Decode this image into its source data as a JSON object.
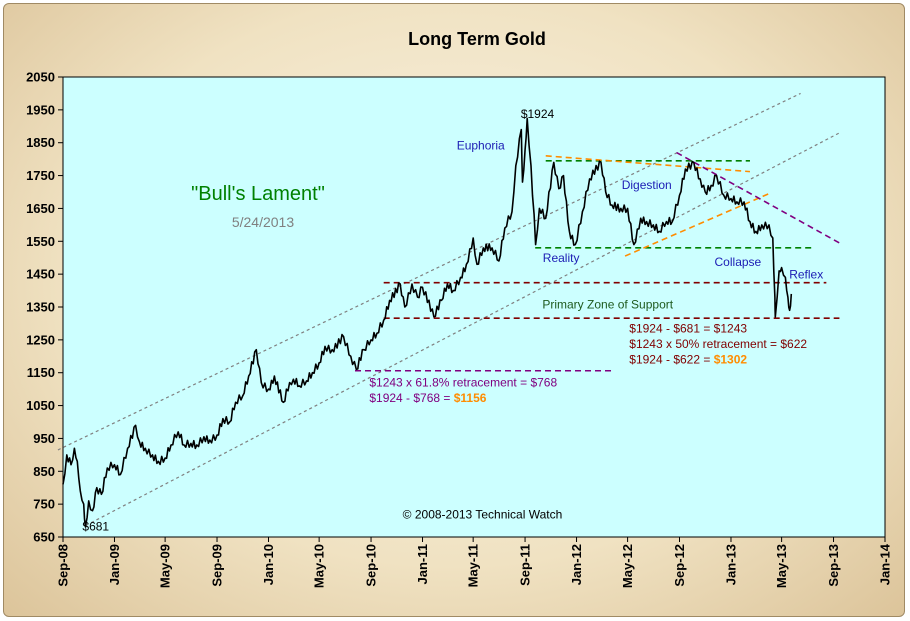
{
  "chart_data": {
    "type": "line",
    "title": "Long Term Gold",
    "xlabel": "",
    "ylabel": "",
    "ylim": [
      650,
      2050
    ],
    "yticks": [
      650,
      750,
      850,
      950,
      1050,
      1150,
      1250,
      1350,
      1450,
      1550,
      1650,
      1750,
      1850,
      1950,
      2050
    ],
    "xlim": [
      "2008-09-01",
      "2014-01-01"
    ],
    "xticks": [
      {
        "date": "2008-09-01",
        "label": "Sep-08"
      },
      {
        "date": "2009-01-01",
        "label": "Jan-09"
      },
      {
        "date": "2009-05-01",
        "label": "May-09"
      },
      {
        "date": "2009-09-01",
        "label": "Sep-09"
      },
      {
        "date": "2010-01-01",
        "label": "Jan-10"
      },
      {
        "date": "2010-05-01",
        "label": "May-10"
      },
      {
        "date": "2010-09-01",
        "label": "Sep-10"
      },
      {
        "date": "2011-01-01",
        "label": "Jan-11"
      },
      {
        "date": "2011-05-01",
        "label": "May-11"
      },
      {
        "date": "2011-09-01",
        "label": "Sep-11"
      },
      {
        "date": "2012-01-01",
        "label": "Jan-12"
      },
      {
        "date": "2012-05-01",
        "label": "May-12"
      },
      {
        "date": "2012-09-01",
        "label": "Sep-12"
      },
      {
        "date": "2013-01-01",
        "label": "Jan-13"
      },
      {
        "date": "2013-05-01",
        "label": "May-13"
      },
      {
        "date": "2013-09-01",
        "label": "Sep-13"
      },
      {
        "date": "2014-01-01",
        "label": "Jan-14"
      }
    ],
    "grid": false,
    "series": [
      {
        "color": "#000000",
        "points": [
          [
            "2008-09-01",
            810
          ],
          [
            "2008-09-10",
            900
          ],
          [
            "2008-09-20",
            870
          ],
          [
            "2008-09-28",
            920
          ],
          [
            "2008-10-05",
            880
          ],
          [
            "2008-10-12",
            790
          ],
          [
            "2008-10-20",
            750
          ],
          [
            "2008-10-24",
            681
          ],
          [
            "2008-11-01",
            760
          ],
          [
            "2008-11-10",
            730
          ],
          [
            "2008-11-20",
            800
          ],
          [
            "2008-12-01",
            780
          ],
          [
            "2008-12-15",
            860
          ],
          [
            "2009-01-01",
            870
          ],
          [
            "2009-01-15",
            840
          ],
          [
            "2009-02-01",
            920
          ],
          [
            "2009-02-20",
            990
          ],
          [
            "2009-03-01",
            940
          ],
          [
            "2009-03-15",
            920
          ],
          [
            "2009-04-01",
            900
          ],
          [
            "2009-04-15",
            880
          ],
          [
            "2009-05-01",
            890
          ],
          [
            "2009-05-15",
            930
          ],
          [
            "2009-06-01",
            970
          ],
          [
            "2009-06-15",
            930
          ],
          [
            "2009-07-01",
            935
          ],
          [
            "2009-07-15",
            930
          ],
          [
            "2009-08-01",
            955
          ],
          [
            "2009-08-15",
            945
          ],
          [
            "2009-09-01",
            960
          ],
          [
            "2009-09-15",
            1010
          ],
          [
            "2009-10-01",
            1000
          ],
          [
            "2009-10-15",
            1060
          ],
          [
            "2009-11-01",
            1080
          ],
          [
            "2009-11-15",
            1140
          ],
          [
            "2009-12-03",
            1220
          ],
          [
            "2009-12-15",
            1120
          ],
          [
            "2010-01-01",
            1100
          ],
          [
            "2010-01-15",
            1140
          ],
          [
            "2010-02-05",
            1060
          ],
          [
            "2010-02-20",
            1120
          ],
          [
            "2010-03-01",
            1130
          ],
          [
            "2010-03-15",
            1110
          ],
          [
            "2010-04-01",
            1125
          ],
          [
            "2010-04-15",
            1150
          ],
          [
            "2010-05-01",
            1180
          ],
          [
            "2010-05-15",
            1230
          ],
          [
            "2010-06-01",
            1220
          ],
          [
            "2010-06-28",
            1260
          ],
          [
            "2010-07-15",
            1200
          ],
          [
            "2010-07-28",
            1160
          ],
          [
            "2010-08-15",
            1220
          ],
          [
            "2010-09-01",
            1250
          ],
          [
            "2010-09-15",
            1270
          ],
          [
            "2010-10-01",
            1310
          ],
          [
            "2010-10-15",
            1370
          ],
          [
            "2010-11-09",
            1420
          ],
          [
            "2010-11-20",
            1350
          ],
          [
            "2010-12-07",
            1420
          ],
          [
            "2010-12-20",
            1380
          ],
          [
            "2011-01-01",
            1410
          ],
          [
            "2011-01-28",
            1320
          ],
          [
            "2011-02-15",
            1370
          ],
          [
            "2011-03-01",
            1420
          ],
          [
            "2011-03-15",
            1400
          ],
          [
            "2011-04-01",
            1440
          ],
          [
            "2011-04-15",
            1480
          ],
          [
            "2011-05-01",
            1560
          ],
          [
            "2011-05-10",
            1480
          ],
          [
            "2011-05-25",
            1530
          ],
          [
            "2011-06-15",
            1530
          ],
          [
            "2011-07-01",
            1490
          ],
          [
            "2011-07-15",
            1590
          ],
          [
            "2011-08-01",
            1640
          ],
          [
            "2011-08-10",
            1780
          ],
          [
            "2011-08-23",
            1890
          ],
          [
            "2011-08-26",
            1730
          ],
          [
            "2011-09-01",
            1830
          ],
          [
            "2011-09-06",
            1924
          ],
          [
            "2011-09-15",
            1780
          ],
          [
            "2011-09-26",
            1540
          ],
          [
            "2011-10-05",
            1650
          ],
          [
            "2011-10-20",
            1620
          ],
          [
            "2011-11-08",
            1790
          ],
          [
            "2011-11-20",
            1710
          ],
          [
            "2011-12-01",
            1750
          ],
          [
            "2011-12-15",
            1580
          ],
          [
            "2011-12-29",
            1540
          ],
          [
            "2012-01-15",
            1640
          ],
          [
            "2012-02-01",
            1740
          ],
          [
            "2012-02-28",
            1790
          ],
          [
            "2012-03-10",
            1700
          ],
          [
            "2012-03-25",
            1660
          ],
          [
            "2012-04-15",
            1650
          ],
          [
            "2012-05-01",
            1650
          ],
          [
            "2012-05-16",
            1540
          ],
          [
            "2012-06-01",
            1620
          ],
          [
            "2012-06-15",
            1610
          ],
          [
            "2012-07-01",
            1600
          ],
          [
            "2012-07-15",
            1580
          ],
          [
            "2012-08-01",
            1610
          ],
          [
            "2012-08-15",
            1610
          ],
          [
            "2012-09-01",
            1690
          ],
          [
            "2012-09-15",
            1770
          ],
          [
            "2012-10-05",
            1790
          ],
          [
            "2012-10-20",
            1740
          ],
          [
            "2012-11-01",
            1700
          ],
          [
            "2012-11-15",
            1720
          ],
          [
            "2012-11-28",
            1750
          ],
          [
            "2012-12-15",
            1690
          ],
          [
            "2013-01-01",
            1680
          ],
          [
            "2013-01-15",
            1670
          ],
          [
            "2013-02-01",
            1670
          ],
          [
            "2013-02-15",
            1610
          ],
          [
            "2013-03-01",
            1580
          ],
          [
            "2013-03-15",
            1600
          ],
          [
            "2013-04-01",
            1600
          ],
          [
            "2013-04-10",
            1560
          ],
          [
            "2013-04-15",
            1380
          ],
          [
            "2013-04-16",
            1320
          ],
          [
            "2013-04-25",
            1460
          ],
          [
            "2013-05-01",
            1470
          ],
          [
            "2013-05-10",
            1440
          ],
          [
            "2013-05-16",
            1380
          ],
          [
            "2013-05-20",
            1340
          ],
          [
            "2013-05-24",
            1390
          ]
        ]
      }
    ],
    "trendlines": [
      {
        "color": "#808080",
        "style": "dotted",
        "from": [
          "2008-08-20",
          915
        ],
        "to": [
          "2013-06-15",
          2000
        ]
      },
      {
        "color": "#808080",
        "style": "dotted",
        "from": [
          "2008-10-25",
          685
        ],
        "to": [
          "2013-09-15",
          1880
        ]
      },
      {
        "color": "#008000",
        "style": "dashed",
        "from": [
          "2011-10-20",
          1795
        ],
        "to": [
          "2013-02-15",
          1795
        ]
      },
      {
        "color": "#008000",
        "style": "dashed",
        "from": [
          "2011-09-25",
          1530
        ],
        "to": [
          "2013-07-15",
          1530
        ]
      },
      {
        "color": "#ff8c00",
        "style": "dashed",
        "from": [
          "2011-10-20",
          1810
        ],
        "to": [
          "2013-02-15",
          1762
        ]
      },
      {
        "color": "#ff8c00",
        "style": "dashed",
        "from": [
          "2012-04-25",
          1505
        ],
        "to": [
          "2013-04-01",
          1695
        ]
      },
      {
        "color": "#800080",
        "style": "dashed",
        "from": [
          "2012-08-25",
          1820
        ],
        "to": [
          "2013-09-15",
          1545
        ]
      },
      {
        "color": "#800000",
        "style": "dashed",
        "from": [
          "2010-10-01",
          1424
        ],
        "to": [
          "2013-08-15",
          1424
        ]
      },
      {
        "color": "#800000",
        "style": "dashed",
        "from": [
          "2010-10-01",
          1316
        ],
        "to": [
          "2013-09-15",
          1316
        ]
      },
      {
        "color": "#800080",
        "style": "dashed",
        "from": [
          "2010-07-25",
          1156
        ],
        "to": [
          "2012-04-01",
          1156
        ]
      }
    ],
    "annotations": [
      {
        "text": "$1924",
        "color": "#000000",
        "at": [
          "2011-08-22",
          1925
        ]
      },
      {
        "text": "$681",
        "color": "#000000",
        "at": [
          "2008-10-17",
          670
        ]
      },
      {
        "text": "Euphoria",
        "color": "#1c1cb4",
        "at": [
          "2011-03-23",
          1829
        ]
      },
      {
        "text": "Reality",
        "color": "#1c1cb4",
        "at": [
          "2011-10-13",
          1487
        ]
      },
      {
        "text": "Digestion",
        "color": "#1c1cb4",
        "at": [
          "2012-04-17",
          1709
        ]
      },
      {
        "text": "Collapse",
        "color": "#1c1cb4",
        "at": [
          "2012-11-23",
          1475
        ]
      },
      {
        "text": "Reflex",
        "color": "#1c1cb4",
        "at": [
          "2013-05-19",
          1436
        ]
      },
      {
        "text": "Primary Zone of Support",
        "color": "#1e5a1e",
        "at": [
          "2011-10-12",
          1345
        ]
      },
      {
        "text": "$1924  - $681 = $1243",
        "color": "#800000",
        "at": [
          "2012-05-05",
          1272
        ]
      },
      {
        "text": "$1243  x 50% retracement = $622",
        "color": "#800000",
        "at": [
          "2012-05-05",
          1225
        ]
      },
      {
        "text": "$1924  - $622 = ",
        "value": "$1302",
        "color": "#800000",
        "value_color": "#ff8c00",
        "at": [
          "2012-05-05",
          1178
        ]
      },
      {
        "text": "$1243  x 61.8% retracement = $768",
        "color": "#800080",
        "at": [
          "2010-08-28",
          1108
        ]
      },
      {
        "text": "$1924  - $768 = ",
        "value": "$1156",
        "color": "#800080",
        "value_color": "#ff8c00",
        "at": [
          "2010-08-28",
          1061
        ]
      },
      {
        "text": "© 2008-2013  Technical Watch",
        "color": "#000000",
        "at": [
          "2010-11-15",
          707
        ]
      }
    ],
    "inset_title": {
      "text": "\"Bull's  Lament\"",
      "color": "#008000"
    },
    "inset_date": {
      "text": "5/24/2013",
      "color": "#808080"
    }
  },
  "colors": {
    "plot_background": "#ccffff",
    "price_line": "#000000",
    "axis": "#000000"
  }
}
